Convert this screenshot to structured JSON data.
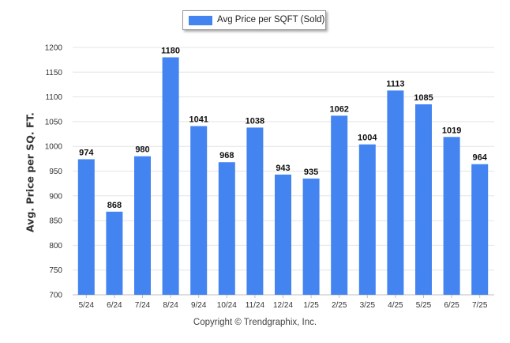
{
  "chart_data": {
    "type": "bar",
    "categories": [
      "5/24",
      "6/24",
      "7/24",
      "8/24",
      "9/24",
      "10/24",
      "11/24",
      "12/24",
      "1/25",
      "2/25",
      "3/25",
      "4/25",
      "5/25",
      "6/25",
      "7/25"
    ],
    "series": [
      {
        "name": "Avg Price per SQFT (Sold)",
        "values": [
          974,
          868,
          980,
          1180,
          1041,
          968,
          1038,
          943,
          935,
          1062,
          1004,
          1113,
          1085,
          1019,
          964
        ]
      }
    ],
    "data_labels": [
      "974",
      "868",
      "980",
      "1180",
      "1041",
      "968",
      "1038",
      "943",
      "935",
      "1062",
      "1004",
      "1113",
      "1085",
      "1019",
      "964"
    ],
    "ylabel": "Avg. Price per SQ. FT.",
    "xlabel": "",
    "ylim": [
      700,
      1200
    ],
    "y_ticks": [
      "700",
      "750",
      "800",
      "850",
      "900",
      "950",
      "1000",
      "1050",
      "1100",
      "1150",
      "1200"
    ],
    "grid": true,
    "legend": "top-center",
    "bar_color": "#4384f0"
  },
  "legend_label": "Avg Price per SQFT (Sold)",
  "copyright": "Copyright © Trendgraphix, Inc."
}
